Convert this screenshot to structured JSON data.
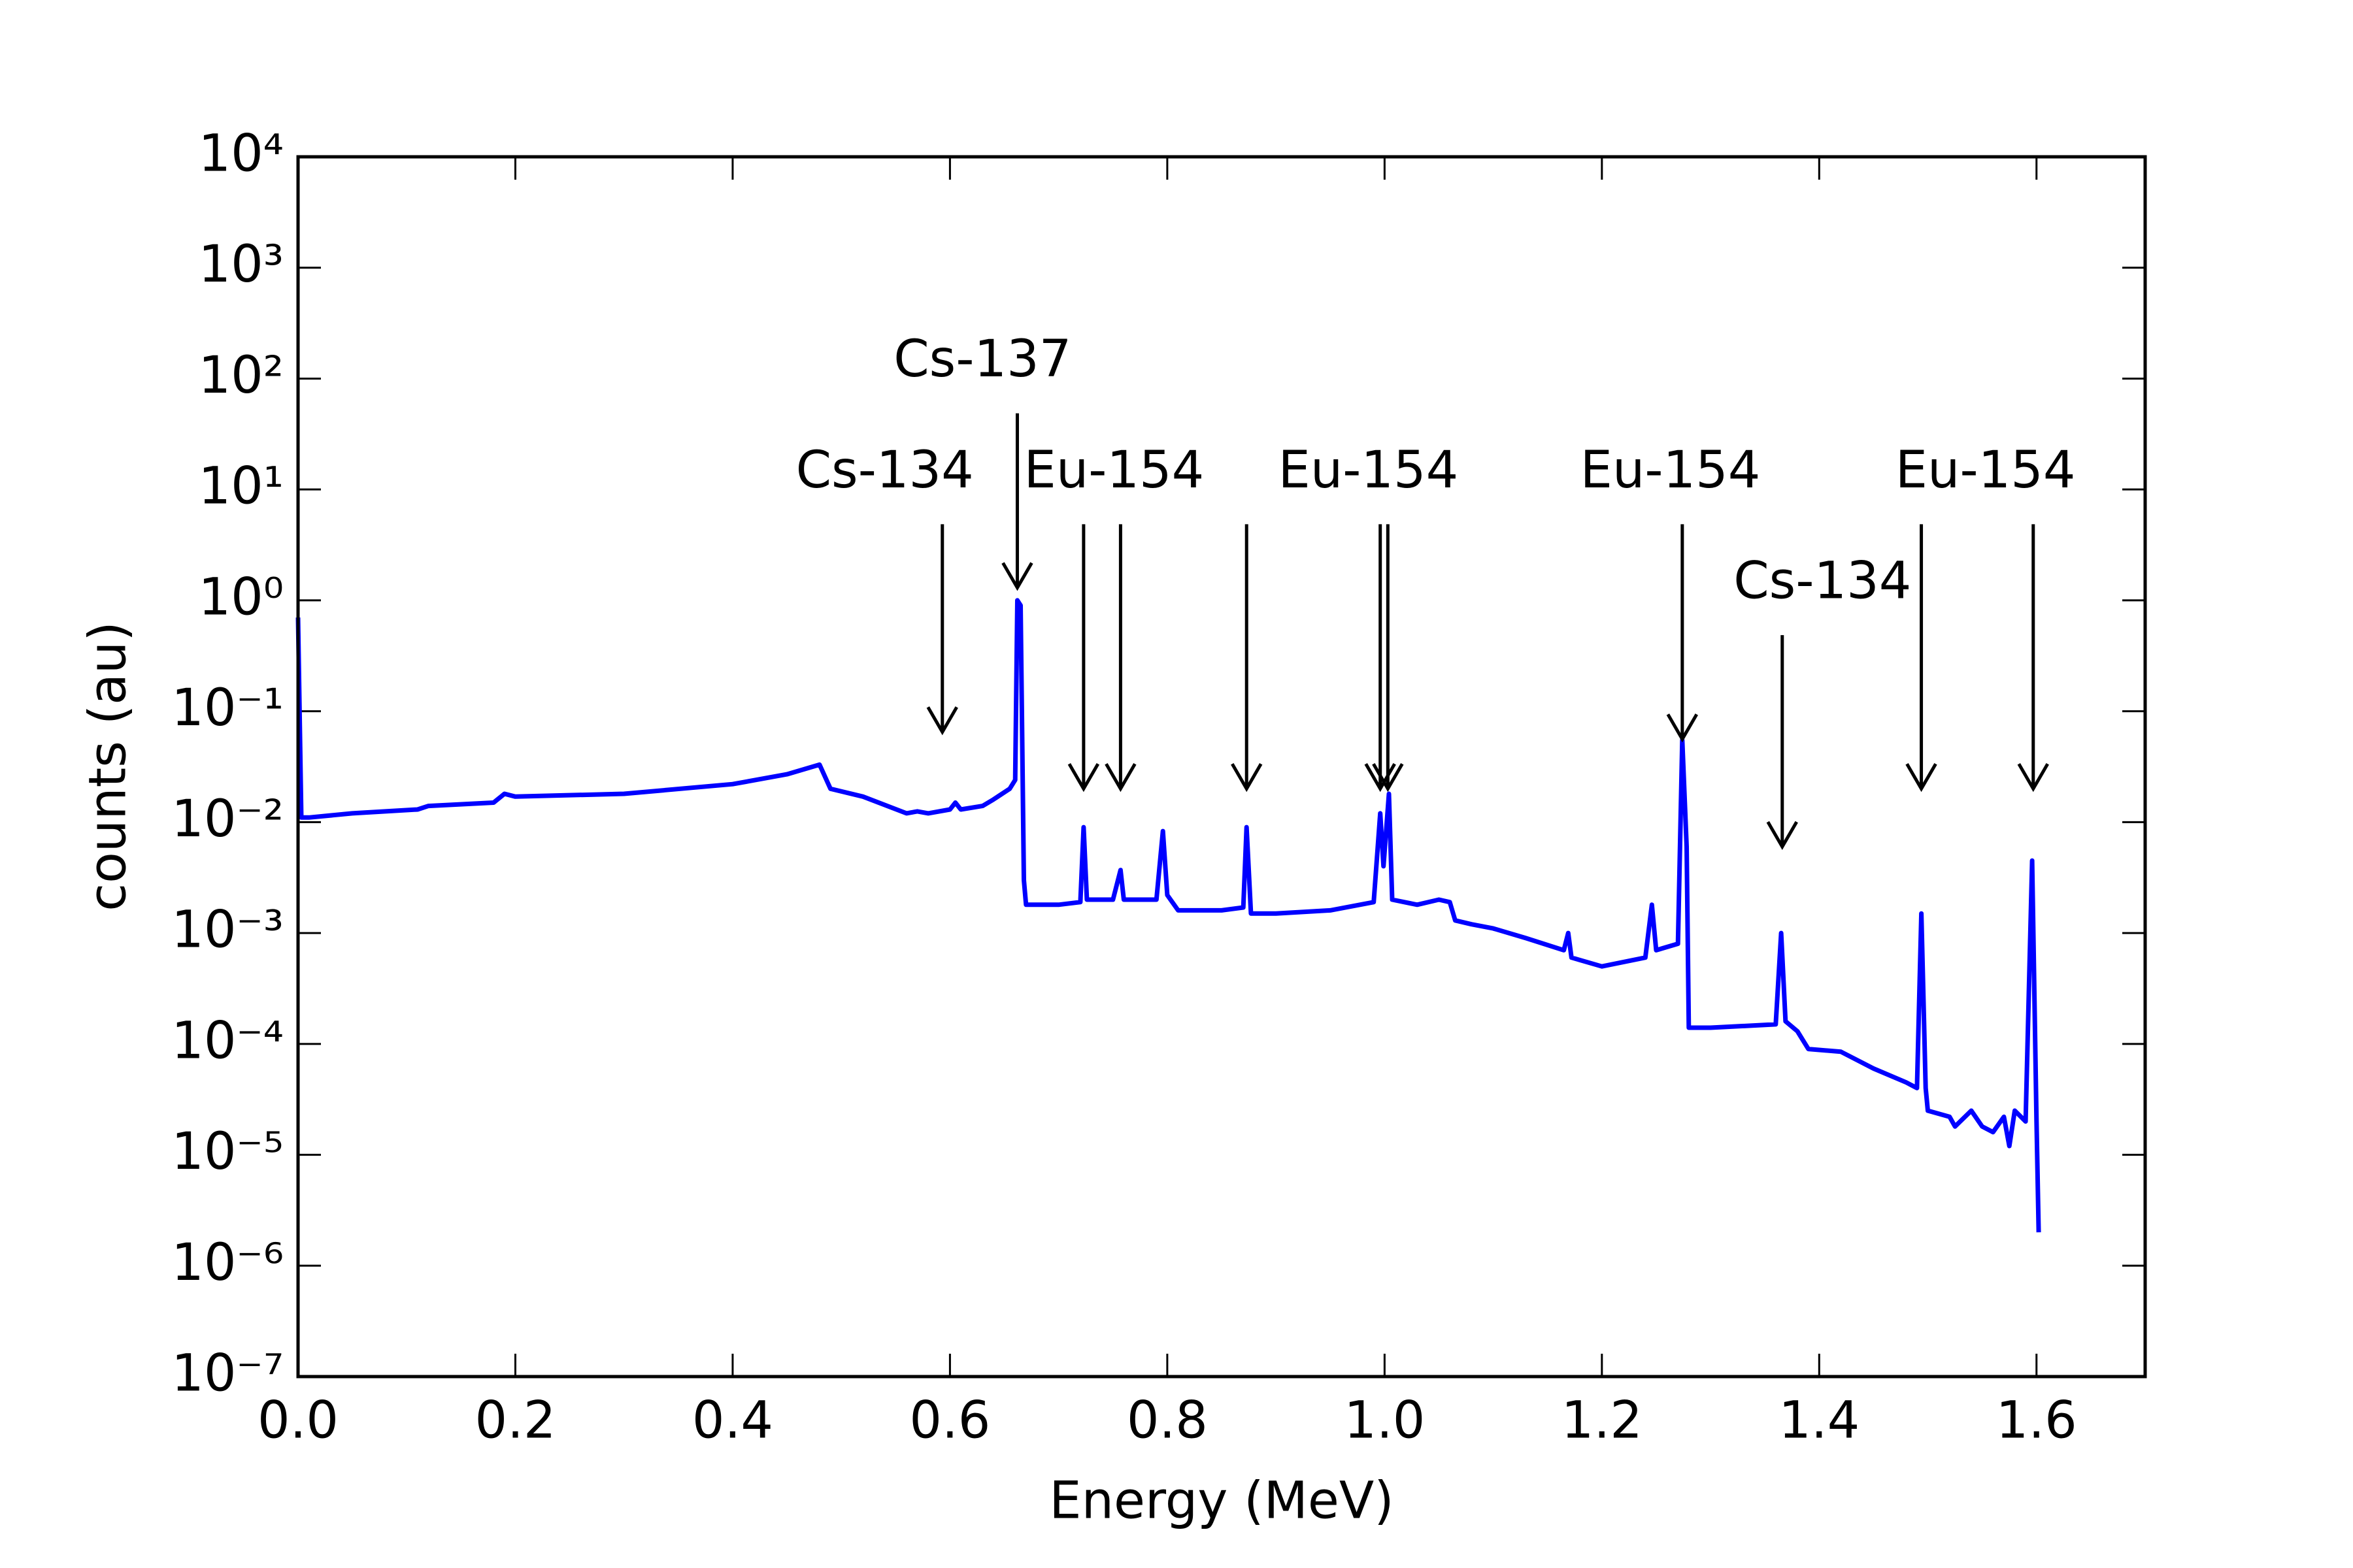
{
  "chart_data": {
    "type": "line",
    "xlabel": "Energy (MeV)",
    "ylabel": "counts (au)",
    "color": "#0000ff",
    "log_y": true,
    "xlim": [
      0,
      1.7
    ],
    "ylim": [
      1e-07,
      10000
    ],
    "xticks": [
      {
        "value": 0,
        "label": "0.0"
      },
      0.2,
      0.4,
      0.6,
      0.8,
      {
        "value": 1,
        "label": "1.0"
      },
      1.2,
      1.4,
      1.6
    ],
    "yticks": [
      {
        "value": 1e-07,
        "label": "10⁻⁷"
      },
      {
        "value": 1e-06,
        "label": "10⁻⁶"
      },
      {
        "value": 1e-05,
        "label": "10⁻⁵"
      },
      {
        "value": 0.0001,
        "label": "10⁻⁴"
      },
      {
        "value": 0.001,
        "label": "10⁻³"
      },
      {
        "value": 0.01,
        "label": "10⁻²"
      },
      {
        "value": 0.1,
        "label": "10⁻¹"
      },
      {
        "value": 1,
        "label": "10⁰"
      },
      {
        "value": 10,
        "label": "10¹"
      },
      {
        "value": 100,
        "label": "10²"
      },
      {
        "value": 1000,
        "label": "10³"
      },
      {
        "value": 10000,
        "label": "10⁴"
      }
    ],
    "x": [
      0.0,
      0.003,
      0.01,
      0.05,
      0.11,
      0.12,
      0.18,
      0.19,
      0.2,
      0.3,
      0.4,
      0.45,
      0.48,
      0.49,
      0.52,
      0.56,
      0.57,
      0.58,
      0.6,
      0.605,
      0.61,
      0.63,
      0.64,
      0.655,
      0.66,
      0.662,
      0.665,
      0.668,
      0.67,
      0.7,
      0.72,
      0.723,
      0.726,
      0.75,
      0.757,
      0.76,
      0.79,
      0.796,
      0.8,
      0.81,
      0.85,
      0.87,
      0.873,
      0.877,
      0.9,
      0.95,
      0.99,
      0.996,
      0.999,
      1.004,
      1.007,
      1.03,
      1.05,
      1.06,
      1.065,
      1.08,
      1.1,
      1.13,
      1.165,
      1.169,
      1.172,
      1.2,
      1.24,
      1.246,
      1.25,
      1.27,
      1.274,
      1.278,
      1.28,
      1.3,
      1.36,
      1.365,
      1.369,
      1.38,
      1.39,
      1.42,
      1.45,
      1.48,
      1.49,
      1.494,
      1.498,
      1.5,
      1.52,
      1.525,
      1.54,
      1.55,
      1.56,
      1.57,
      1.575,
      1.58,
      1.59,
      1.596,
      1.6,
      1.602
    ],
    "values": [
      0.7,
      0.011,
      0.011,
      0.012,
      0.013,
      0.014,
      0.015,
      0.018,
      0.017,
      0.018,
      0.022,
      0.027,
      0.033,
      0.02,
      0.017,
      0.012,
      0.0125,
      0.012,
      0.013,
      0.015,
      0.013,
      0.014,
      0.016,
      0.02,
      0.024,
      1.0,
      0.9,
      0.003,
      0.0018,
      0.0018,
      0.0019,
      0.009,
      0.002,
      0.002,
      0.0037,
      0.002,
      0.002,
      0.0083,
      0.0022,
      0.0016,
      0.0016,
      0.0017,
      0.009,
      0.0015,
      0.0015,
      0.0016,
      0.0019,
      0.012,
      0.004,
      0.018,
      0.002,
      0.0018,
      0.002,
      0.0019,
      0.0013,
      0.0012,
      0.0011,
      0.0009,
      0.0007,
      0.001,
      0.0006,
      0.0005,
      0.0006,
      0.0018,
      0.0007,
      0.0008,
      0.055,
      0.006,
      0.00014,
      0.00014,
      0.00015,
      0.001,
      0.00016,
      0.00013,
      9e-05,
      8.5e-05,
      6e-05,
      4.5e-05,
      4e-05,
      0.0015,
      4e-05,
      2.5e-05,
      2.2e-05,
      1.8e-05,
      2.5e-05,
      1.8e-05,
      1.6e-05,
      2.2e-05,
      1.2e-05,
      2.5e-05,
      2e-05,
      0.0045,
      2e-05,
      2e-06
    ],
    "annotations": [
      {
        "text": "Cs-134",
        "x": 0.54,
        "y": 14,
        "arrows": [
          {
            "x": 0.593,
            "y": 0.065
          }
        ]
      },
      {
        "text": "Cs-137",
        "x": 0.63,
        "y": 140,
        "arrows": [
          {
            "x": 0.662,
            "y": 1.3
          }
        ]
      },
      {
        "text": "Eu-154",
        "x": 0.751,
        "y": 14,
        "arrows": [
          {
            "x": 0.723,
            "y": 0.02
          },
          {
            "x": 0.757,
            "y": 0.02
          }
        ]
      },
      {
        "text": "Eu-154",
        "x": 0.985,
        "y": 14,
        "arrows": [
          {
            "x": 0.873,
            "y": 0.02
          },
          {
            "x": 0.996,
            "y": 0.02
          },
          {
            "x": 1.003,
            "y": 0.02
          }
        ]
      },
      {
        "text": "Eu-154",
        "x": 1.263,
        "y": 14,
        "arrows": [
          {
            "x": 1.274,
            "y": 0.056
          }
        ]
      },
      {
        "text": "Cs-134",
        "x": 1.403,
        "y": 1.4,
        "arrows": [
          {
            "x": 1.366,
            "y": 0.006
          }
        ]
      },
      {
        "text": "Eu-154",
        "x": 1.553,
        "y": 14,
        "arrows": [
          {
            "x": 1.494,
            "y": 0.02
          },
          {
            "x": 1.597,
            "y": 0.02
          }
        ]
      }
    ]
  }
}
